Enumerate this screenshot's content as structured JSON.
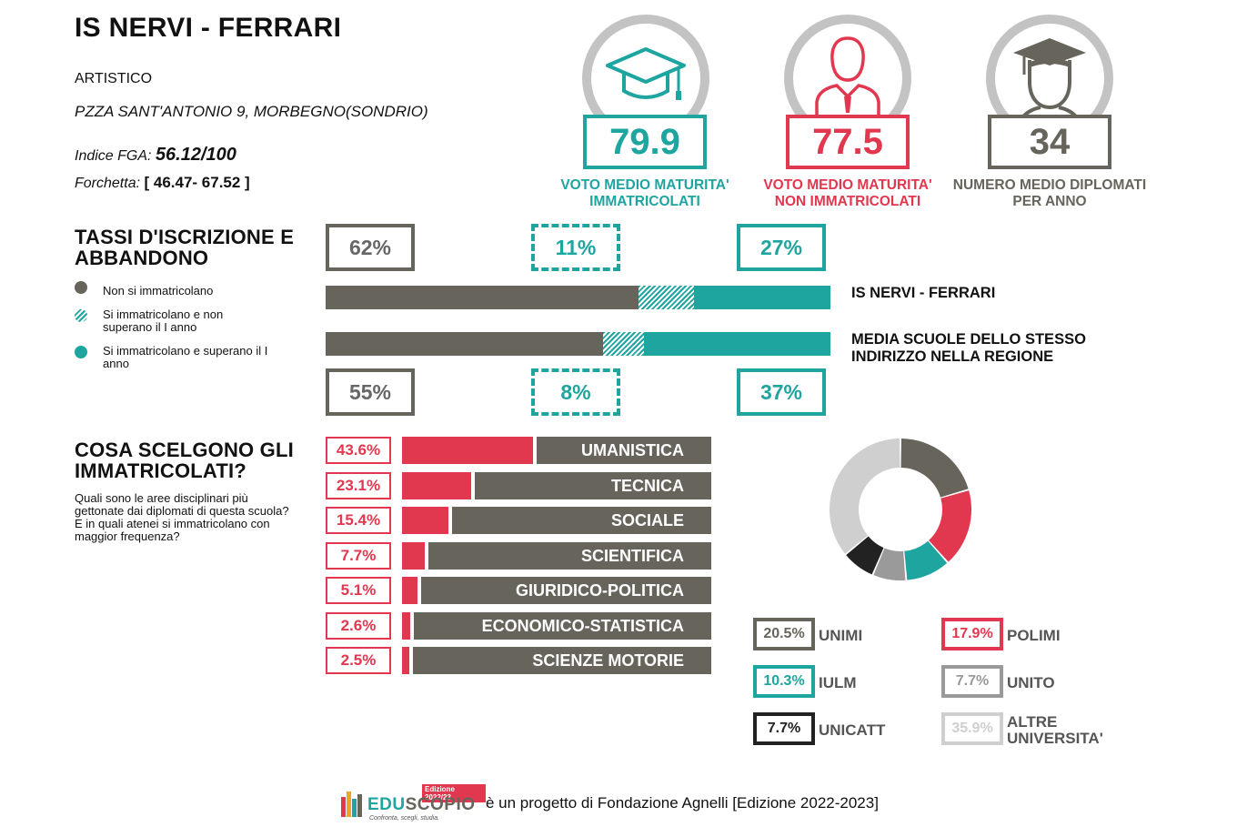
{
  "school": {
    "name": "IS NERVI - FERRARI",
    "type": "ARTISTICO",
    "address": "PZZA SANT'ANTONIO 9, MORBEGNO(SONDRIO)",
    "fga_label": "Indice FGA:",
    "fga_value": "56.12/100",
    "forchetta_label": "Forchetta:",
    "forchetta_value": "[ 46.47- 67.52 ]"
  },
  "kpis": [
    {
      "value": "79.9",
      "label": "VOTO MEDIO MATURITA' IMMATRICOLATI",
      "color": "#1fa5a0",
      "icon": "graduation-cap-icon"
    },
    {
      "value": "77.5",
      "label": "VOTO MEDIO MATURITA' NON IMMATRICOLATI",
      "color": "#e1384f",
      "icon": "person-icon"
    },
    {
      "value": "34",
      "label": "NUMERO MEDIO DIPLOMATI PER ANNO",
      "color": "#67645c",
      "icon": "graduate-person-icon"
    }
  ],
  "enrollment": {
    "title": "TASSI D'ISCRIZIONE E ABBANDONO",
    "legend": [
      {
        "label": "Non si immatricolano",
        "color": "#67645c"
      },
      {
        "label": "Si immatricolano e non superano il I anno",
        "color": "#1fa5a0"
      },
      {
        "label": "Si immatricolano e superano il I anno",
        "color": "#1fa5a0"
      }
    ],
    "school_row": {
      "label": "IS NERVI - FERRARI",
      "values": [
        "62%",
        "11%",
        "27%"
      ],
      "fractions": [
        0.62,
        0.11,
        0.27
      ]
    },
    "region_row": {
      "label": "MEDIA SCUOLE DELLO STESSO INDIRIZZO NELLA REGIONE",
      "values": [
        "55%",
        "8%",
        "37%"
      ],
      "fractions": [
        0.55,
        0.08,
        0.37
      ]
    }
  },
  "areas": {
    "title": "COSA SCELGONO GLI IMMATRICOLATI?",
    "subtitle": "Quali sono le aree disciplinari più gettonate dai diplomati di questa scuola?\nE in quali atenei si immatricolano con maggior frequenza?",
    "items": [
      {
        "label": "UMANISTICA",
        "pct": "43.6%",
        "value": 43.6
      },
      {
        "label": "TECNICA",
        "pct": "23.1%",
        "value": 23.1
      },
      {
        "label": "SOCIALE",
        "pct": "15.4%",
        "value": 15.4
      },
      {
        "label": "SCIENTIFICA",
        "pct": "7.7%",
        "value": 7.7
      },
      {
        "label": "GIURIDICO-POLITICA",
        "pct": "5.1%",
        "value": 5.1
      },
      {
        "label": "ECONOMICO-STATISTICA",
        "pct": "2.6%",
        "value": 2.6
      },
      {
        "label": "SCIENZE MOTORIE",
        "pct": "2.5%",
        "value": 2.5
      }
    ]
  },
  "universities": [
    {
      "name": "UNIMI",
      "pct": "20.5%",
      "value": 20.5,
      "color": "#67645c"
    },
    {
      "name": "POLIMI",
      "pct": "17.9%",
      "value": 17.9,
      "color": "#e1384f"
    },
    {
      "name": "IULM",
      "pct": "10.3%",
      "value": 10.3,
      "color": "#1fa5a0"
    },
    {
      "name": "UNITO",
      "pct": "7.7%",
      "value": 7.7,
      "color": "#9a9a9a"
    },
    {
      "name": "UNICATT",
      "pct": "7.7%",
      "value": 7.7,
      "color": "#222222"
    },
    {
      "name": "ALTRE UNIVERSITA'",
      "pct": "35.9%",
      "value": 35.9,
      "color": "#cfcfcf"
    }
  ],
  "chart_data": {
    "type": "pie",
    "categories": [
      "UNIMI",
      "POLIMI",
      "IULM",
      "UNITO",
      "UNICATT",
      "ALTRE UNIVERSITA'"
    ],
    "values": [
      20.5,
      17.9,
      10.3,
      7.7,
      7.7,
      35.9
    ],
    "order_clockwise_from_top": [
      "UNIMI",
      "POLIMI",
      "IULM",
      "UNITO",
      "UNICATT",
      "ALTRE UNIVERSITA'"
    ]
  },
  "footer": {
    "brand": "EDUSCOPIO",
    "brand_edu": "EDU",
    "brand_scopio": "SCOPIO",
    "edition_badge": "Edizione 2022/23",
    "tagline": "Confronta, scegli, studia.",
    "text": "è un progetto di Fondazione Agnelli [Edizione 2022-2023]"
  }
}
